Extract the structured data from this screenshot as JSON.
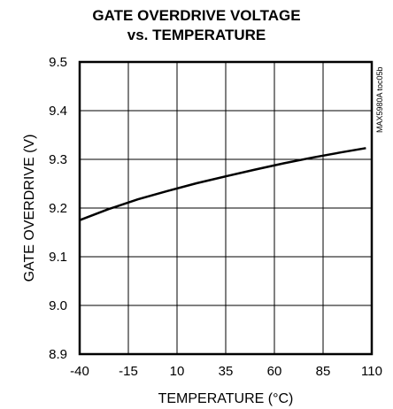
{
  "chart_data": {
    "type": "line",
    "title": "GATE OVERDRIVE VOLTAGE",
    "subtitle": "vs. TEMPERATURE",
    "xlabel": "TEMPERATURE (°C)",
    "ylabel": "GATE OVERDRIVE (V)",
    "xlim": [
      -40,
      110
    ],
    "ylim": [
      8.9,
      9.5
    ],
    "xticks": [
      "-40",
      "-15",
      "10",
      "35",
      "60",
      "85",
      "110"
    ],
    "yticks": [
      "8.9",
      "9.0",
      "9.1",
      "9.2",
      "9.3",
      "9.4",
      "9.5"
    ],
    "grid": true,
    "annotation": "MAX5980A toc05b",
    "series": [
      {
        "x": [
          -40,
          -25,
          -10,
          5,
          20,
          35,
          50,
          65,
          80,
          95,
          107
        ],
        "y": [
          9.175,
          9.198,
          9.218,
          9.235,
          9.251,
          9.265,
          9.279,
          9.292,
          9.304,
          9.315,
          9.323
        ],
        "color": "#000000"
      }
    ]
  }
}
